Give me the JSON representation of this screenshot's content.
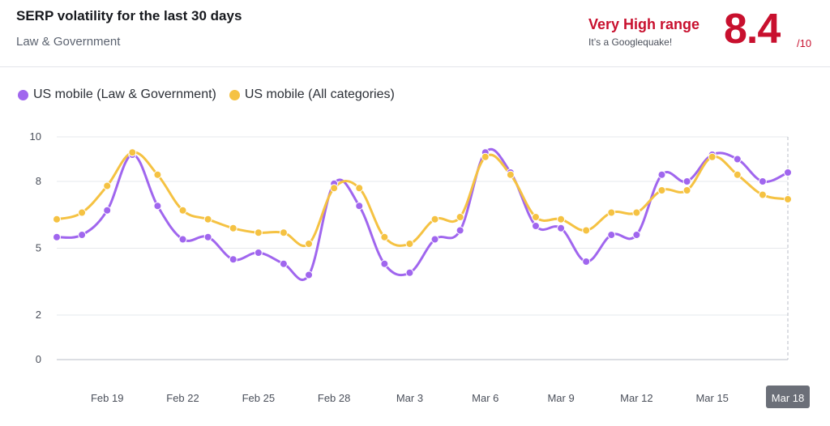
{
  "header": {
    "title": "SERP volatility for the last 30 days",
    "subtitle": "Law & Government",
    "range_label": "Very High range",
    "range_note": "It’s a Googlequake!",
    "score": "8.4",
    "score_max": "/10"
  },
  "colors": {
    "law_series": "#a066ee",
    "all_series": "#f5c242",
    "accent_red": "#c8102e",
    "grid": "#e6e8ec",
    "axis": "#b9bec7"
  },
  "chart_data": {
    "type": "line",
    "title": "SERP volatility for the last 30 days",
    "subtitle": "Law & Government",
    "ylim": [
      0,
      10
    ],
    "y_ticks": [
      0,
      2,
      5,
      8,
      10
    ],
    "x_tick_labels": [
      "Feb 19",
      "Feb 22",
      "Feb 25",
      "Feb 28",
      "Mar 3",
      "Mar 6",
      "Mar 9",
      "Mar 12",
      "Mar 15",
      "Mar 18"
    ],
    "x_tick_indices": [
      2,
      5,
      8,
      11,
      14,
      17,
      20,
      23,
      26,
      29
    ],
    "highlighted_label": "Mar 18",
    "x": [
      "Feb 17",
      "Feb 18",
      "Feb 19",
      "Feb 20",
      "Feb 21",
      "Feb 22",
      "Feb 23",
      "Feb 24",
      "Feb 25",
      "Feb 26",
      "Feb 27",
      "Feb 28",
      "Mar 1",
      "Mar 2",
      "Mar 3",
      "Mar 4",
      "Mar 5",
      "Mar 6",
      "Mar 7",
      "Mar 8",
      "Mar 9",
      "Mar 10",
      "Mar 11",
      "Mar 12",
      "Mar 13",
      "Mar 14",
      "Mar 15",
      "Mar 16",
      "Mar 17",
      "Mar 18"
    ],
    "series": [
      {
        "name": "US mobile (Law & Government)",
        "color": "#a066ee",
        "values": [
          5.5,
          5.6,
          6.7,
          9.2,
          6.9,
          5.4,
          5.5,
          4.5,
          4.8,
          4.3,
          3.8,
          7.9,
          6.9,
          4.3,
          3.9,
          5.4,
          5.8,
          9.3,
          8.4,
          6.0,
          5.9,
          4.4,
          5.6,
          5.6,
          8.3,
          8.0,
          9.2,
          9.0,
          8.0,
          8.4
        ]
      },
      {
        "name": "US mobile (All categories)",
        "color": "#f5c242",
        "values": [
          6.3,
          6.6,
          7.8,
          9.3,
          8.3,
          6.7,
          6.3,
          5.9,
          5.7,
          5.7,
          5.2,
          7.7,
          7.7,
          5.5,
          5.2,
          6.3,
          6.4,
          9.1,
          8.3,
          6.4,
          6.3,
          5.8,
          6.6,
          6.6,
          7.6,
          7.6,
          9.1,
          8.3,
          7.4,
          7.2
        ]
      }
    ]
  }
}
